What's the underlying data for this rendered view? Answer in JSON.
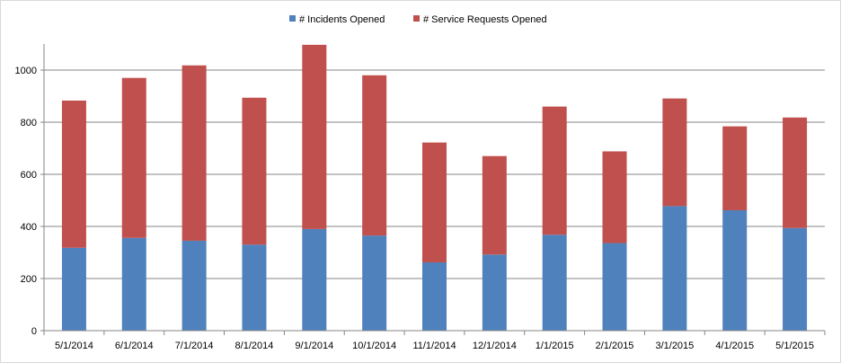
{
  "chart_data": {
    "type": "bar",
    "stacked": true,
    "categories": [
      "5/1/2014",
      "6/1/2014",
      "7/1/2014",
      "8/1/2014",
      "9/1/2014",
      "10/1/2014",
      "11/1/2014",
      "12/1/2014",
      "1/1/2015",
      "2/1/2015",
      "3/1/2015",
      "4/1/2015",
      "5/1/2015"
    ],
    "series": [
      {
        "name": "# Incidents Opened",
        "color": "#4f81bd",
        "values": [
          318,
          356,
          345,
          330,
          390,
          365,
          262,
          292,
          368,
          336,
          478,
          462,
          394
        ]
      },
      {
        "name": "# Service Requests Opened",
        "color": "#c0504d",
        "values": [
          565,
          614,
          673,
          564,
          707,
          615,
          460,
          378,
          492,
          352,
          413,
          322,
          424
        ]
      }
    ],
    "yticks": [
      0,
      200,
      400,
      600,
      800,
      1000
    ],
    "ylim": [
      0,
      1100
    ],
    "grid": true,
    "legend": "top-center",
    "title": "",
    "xlabel": "",
    "ylabel": ""
  }
}
